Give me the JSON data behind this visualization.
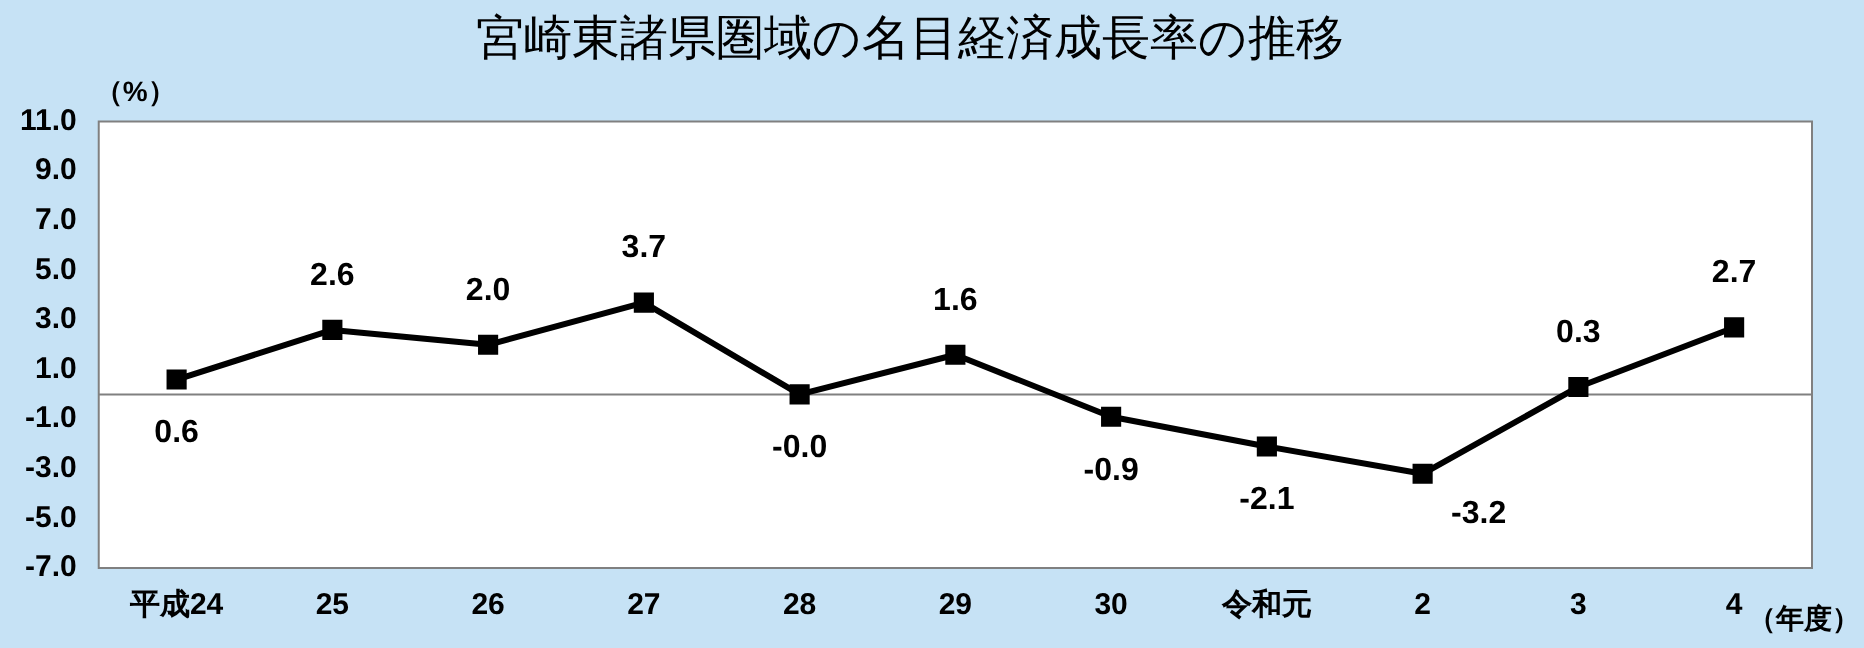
{
  "chart_data": {
    "type": "line",
    "title": "宮崎東諸県圏域の名目経済成長率の推移",
    "ylabel": "（%）",
    "xlabel": "（年度）",
    "categories": [
      "平成24",
      "25",
      "26",
      "27",
      "28",
      "29",
      "30",
      "令和元",
      "2",
      "3",
      "4"
    ],
    "series": [
      {
        "color": "#000000",
        "values": [
          0.6,
          2.6,
          2.0,
          3.7,
          0.0,
          1.6,
          -0.9,
          -2.1,
          -3.2,
          0.3,
          2.7
        ],
        "value_labels": [
          "0.6",
          "2.6",
          "2.0",
          "3.7",
          "-0.0",
          "1.6",
          "-0.9",
          "-2.1",
          "-3.2",
          "0.3",
          "2.7"
        ]
      }
    ],
    "ylim": [
      -7,
      11
    ],
    "yticks": [
      {
        "value": -7,
        "label": "-7.0"
      },
      {
        "value": -5,
        "label": "-5.0"
      },
      {
        "value": -3,
        "label": "-3.0"
      },
      {
        "value": -1,
        "label": "-1.0"
      },
      {
        "value": 1,
        "label": "1.0"
      },
      {
        "value": 3,
        "label": "3.0"
      },
      {
        "value": 5,
        "label": "5.0"
      },
      {
        "value": 7,
        "label": "7.0"
      },
      {
        "value": 9,
        "label": "9.0"
      },
      {
        "value": 11,
        "label": "11.0"
      }
    ],
    "ref_lines": [
      {
        "axis": "y",
        "value": 0,
        "color": "#808080"
      }
    ],
    "grid": false,
    "legend": false,
    "marker": "square",
    "line_style": "solid"
  }
}
